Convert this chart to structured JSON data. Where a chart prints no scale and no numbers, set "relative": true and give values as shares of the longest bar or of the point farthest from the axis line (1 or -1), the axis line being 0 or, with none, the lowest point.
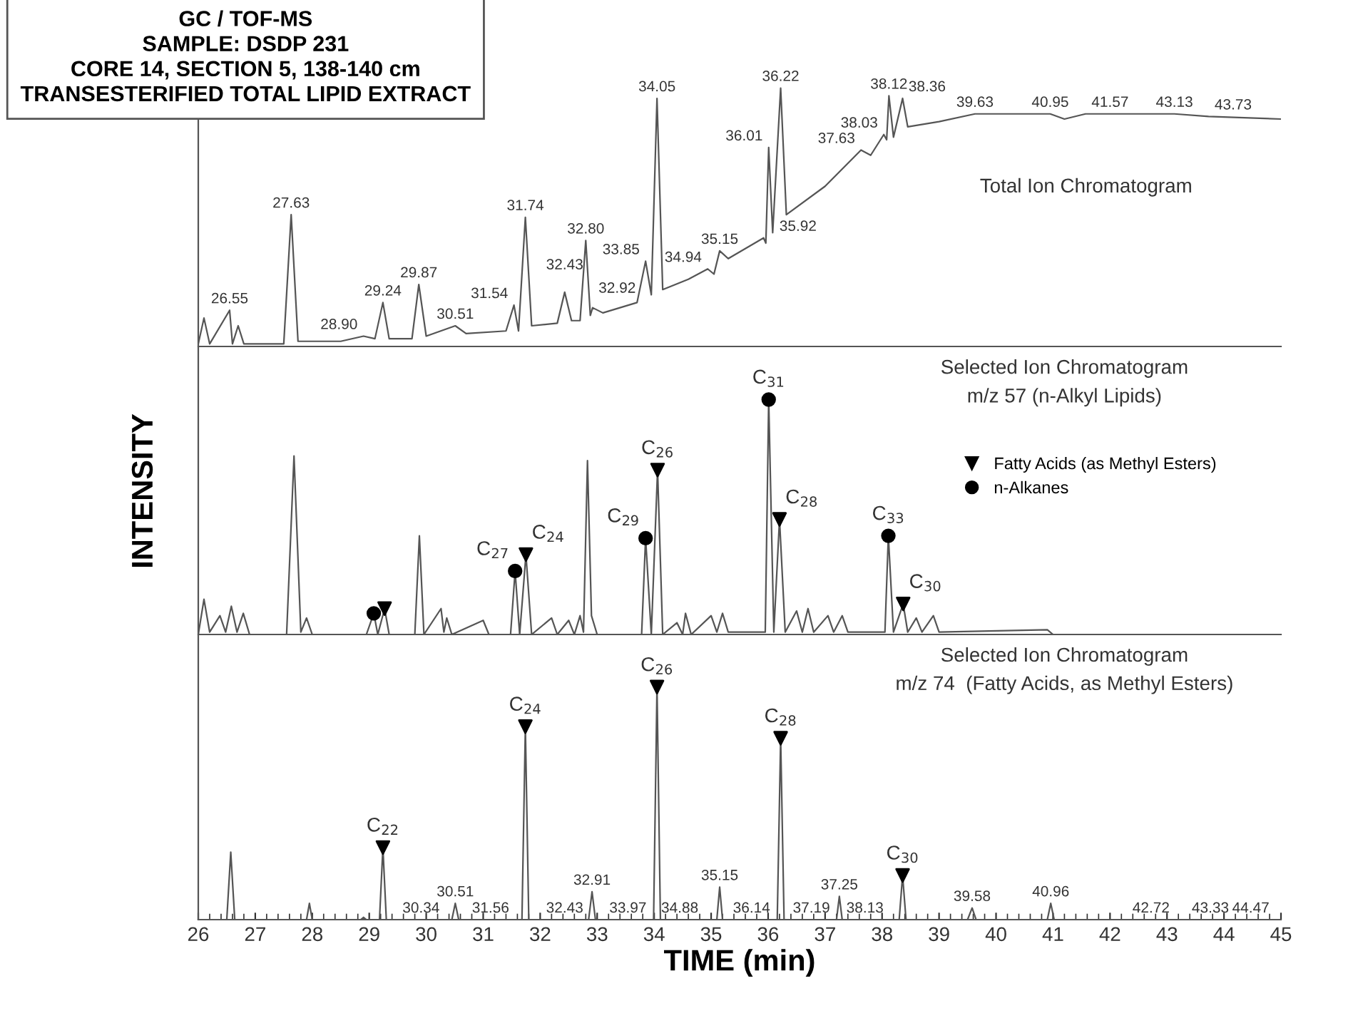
{
  "chart_data": [
    {
      "type": "line",
      "relative": true,
      "title": "GC / TOF-MS\nSAMPLE: DSDP 231\nCORE 14, SECTION 5, 138-140 cm\nTRANSESTERIFIED TOTAL LIPID EXTRACT",
      "subtitle": "Total Ion Chromatogram",
      "xlim": [
        26,
        45
      ],
      "xticks": [
        26,
        27,
        28,
        29,
        30,
        31,
        32,
        33,
        34,
        35,
        36,
        37,
        38,
        39,
        40,
        41,
        42,
        43,
        44,
        45
      ],
      "tick_labels": false,
      "series": [
        {
          "color": "#555555",
          "x": [
            26.0,
            26.1,
            26.2,
            26.55,
            26.6,
            26.7,
            26.8,
            27.5,
            27.63,
            27.75,
            28.5,
            28.9,
            29.1,
            29.24,
            29.35,
            29.75,
            29.87,
            30.0,
            30.51,
            30.7,
            31.4,
            31.54,
            31.62,
            31.74,
            31.85,
            32.3,
            32.43,
            32.55,
            32.7,
            32.8,
            32.88,
            32.92,
            33.1,
            33.7,
            33.85,
            33.95,
            34.05,
            34.15,
            34.6,
            34.94,
            35.05,
            35.15,
            35.3,
            35.92,
            35.96,
            36.01,
            36.08,
            36.22,
            36.32,
            37.0,
            37.63,
            37.8,
            38.03,
            38.08,
            38.12,
            38.2,
            38.36,
            38.45,
            39.0,
            39.63,
            40.95,
            41.2,
            41.57,
            43.13,
            43.73,
            45.0
          ],
          "values": [
            0.01,
            0.11,
            0.01,
            0.14,
            0.01,
            0.08,
            0.01,
            0.01,
            0.51,
            0.02,
            0.02,
            0.04,
            0.03,
            0.17,
            0.03,
            0.03,
            0.24,
            0.04,
            0.08,
            0.05,
            0.06,
            0.16,
            0.06,
            0.5,
            0.08,
            0.09,
            0.21,
            0.1,
            0.1,
            0.41,
            0.12,
            0.15,
            0.13,
            0.17,
            0.33,
            0.2,
            0.96,
            0.22,
            0.26,
            0.3,
            0.28,
            0.37,
            0.34,
            0.42,
            0.4,
            0.77,
            0.44,
            1.0,
            0.51,
            0.62,
            0.76,
            0.74,
            0.82,
            0.8,
            0.97,
            0.81,
            0.96,
            0.85,
            0.87,
            0.9,
            0.9,
            0.88,
            0.9,
            0.9,
            0.89,
            0.88
          ]
        }
      ],
      "annotations": [
        {
          "text": "26.55",
          "x": 26.55,
          "y": 0.14
        },
        {
          "text": "27.63",
          "x": 27.63,
          "y": 0.51
        },
        {
          "text": "28.90",
          "x": 28.9,
          "y": 0.04
        },
        {
          "text": "29.24",
          "x": 29.24,
          "y": 0.17
        },
        {
          "text": "29.87",
          "x": 29.87,
          "y": 0.24
        },
        {
          "text": "30.51",
          "x": 30.51,
          "y": 0.08
        },
        {
          "text": "31.54",
          "x": 31.54,
          "y": 0.16
        },
        {
          "text": "31.74",
          "x": 31.74,
          "y": 0.5
        },
        {
          "text": "32.43",
          "x": 32.43,
          "y": 0.21
        },
        {
          "text": "32.80",
          "x": 32.8,
          "y": 0.41
        },
        {
          "text": "32.92",
          "x": 32.92,
          "y": 0.15
        },
        {
          "text": "33.85",
          "x": 33.85,
          "y": 0.33
        },
        {
          "text": "34.05",
          "x": 34.05,
          "y": 0.96
        },
        {
          "text": "34.94",
          "x": 34.94,
          "y": 0.3
        },
        {
          "text": "35.15",
          "x": 35.15,
          "y": 0.37
        },
        {
          "text": "35.92",
          "x": 35.92,
          "y": 0.42
        },
        {
          "text": "36.01",
          "x": 36.01,
          "y": 0.77
        },
        {
          "text": "36.22",
          "x": 36.22,
          "y": 1.0
        },
        {
          "text": "37.63",
          "x": 37.63,
          "y": 0.76
        },
        {
          "text": "38.03",
          "x": 38.03,
          "y": 0.82
        },
        {
          "text": "38.12",
          "x": 38.12,
          "y": 0.97
        },
        {
          "text": "38.36",
          "x": 38.36,
          "y": 0.96
        },
        {
          "text": "39.63",
          "x": 39.63,
          "y": 0.9
        },
        {
          "text": "40.95",
          "x": 40.95,
          "y": 0.9
        },
        {
          "text": "41.57",
          "x": 41.57,
          "y": 0.9
        },
        {
          "text": "43.13",
          "x": 43.13,
          "y": 0.9
        },
        {
          "text": "43.73",
          "x": 43.73,
          "y": 0.89
        }
      ]
    },
    {
      "type": "line",
      "relative": true,
      "title": "Selected Ion Chromatogram",
      "subtitle": "m/z 57 (n-Alkyl Lipids)",
      "ylabel": "INTENSITY",
      "xlim": [
        26,
        45
      ],
      "xticks": [
        26,
        27,
        28,
        29,
        30,
        31,
        32,
        33,
        34,
        35,
        36,
        37,
        38,
        39,
        40,
        41,
        42,
        43,
        44,
        45
      ],
      "tick_labels": false,
      "legend": "right",
      "series": [
        {
          "color": "#555555",
          "x": [
            26.0,
            26.1,
            26.2,
            26.38,
            26.48,
            26.58,
            26.68,
            26.79,
            26.9,
            27.55,
            27.68,
            27.8,
            27.9,
            28.0,
            28.95,
            29.08,
            29.15,
            29.27,
            29.35,
            29.8,
            29.88,
            29.96,
            30.26,
            30.31,
            30.36,
            30.45,
            31.0,
            31.1,
            31.48,
            31.56,
            31.64,
            31.75,
            31.85,
            32.2,
            32.3,
            32.5,
            32.6,
            32.7,
            32.76,
            32.83,
            32.9,
            33.0,
            33.78,
            33.85,
            33.95,
            34.06,
            34.15,
            34.4,
            34.5,
            34.55,
            34.65,
            35.0,
            35.1,
            35.2,
            35.3,
            35.95,
            36.01,
            36.1,
            36.2,
            36.3,
            36.5,
            36.6,
            36.7,
            36.8,
            37.05,
            37.15,
            37.3,
            37.4,
            38.05,
            38.11,
            38.2,
            38.37,
            38.45,
            38.6,
            38.7,
            38.9,
            39.0,
            40.9,
            41.0,
            45.0
          ],
          "values": [
            0.0,
            0.15,
            0.01,
            0.08,
            0.01,
            0.12,
            0.01,
            0.09,
            0.0,
            0.0,
            0.76,
            0.01,
            0.07,
            0.0,
            0.0,
            0.09,
            0.0,
            0.11,
            0.0,
            0.0,
            0.42,
            0.0,
            0.11,
            0.01,
            0.07,
            0.0,
            0.06,
            0.0,
            0.0,
            0.27,
            0.0,
            0.34,
            0.0,
            0.07,
            0.0,
            0.06,
            0.0,
            0.08,
            0.01,
            0.74,
            0.08,
            0.0,
            0.0,
            0.41,
            0.0,
            0.7,
            0.0,
            0.05,
            0.0,
            0.09,
            0.0,
            0.08,
            0.01,
            0.09,
            0.01,
            0.01,
            1.0,
            0.01,
            0.49,
            0.01,
            0.1,
            0.01,
            0.11,
            0.01,
            0.08,
            0.01,
            0.08,
            0.01,
            0.01,
            0.42,
            0.01,
            0.13,
            0.01,
            0.07,
            0.01,
            0.08,
            0.01,
            0.02,
            0.0,
            0.0
          ]
        },
        {
          "type": "scatter",
          "name": "Fatty Acids (as Methyl Esters)",
          "color": "#000000",
          "marker": "triangle",
          "x": [
            29.27,
            31.75,
            34.06,
            36.2,
            38.37
          ],
          "values": [
            0.11,
            0.34,
            0.7,
            0.49,
            0.13
          ]
        },
        {
          "type": "scatter",
          "name": "n-Alkanes",
          "color": "#000000",
          "marker": "circle",
          "x": [
            29.08,
            31.56,
            33.85,
            36.01,
            38.11
          ],
          "values": [
            0.09,
            0.27,
            0.41,
            1.0,
            0.42
          ]
        }
      ],
      "annotations": [
        {
          "text": "C$_{27}$",
          "x": 31.56,
          "y": 0.27
        },
        {
          "text": "C$_{24}$",
          "x": 31.75,
          "y": 0.34
        },
        {
          "text": "C$_{29}$",
          "x": 33.85,
          "y": 0.41
        },
        {
          "text": "C$_{26}$",
          "x": 34.06,
          "y": 0.7
        },
        {
          "text": "C$_{31}$",
          "x": 36.01,
          "y": 1.0
        },
        {
          "text": "C$_{28}$",
          "x": 36.2,
          "y": 0.49
        },
        {
          "text": "C$_{33}$",
          "x": 38.11,
          "y": 0.42
        },
        {
          "text": "C$_{30}$",
          "x": 38.37,
          "y": 0.13
        }
      ]
    },
    {
      "type": "line",
      "relative": true,
      "title": "Selected Ion Chromatogram",
      "subtitle": "m/z 74  (Fatty Acids, as Methyl Esters)",
      "xlabel": "TIME (min)",
      "xlim": [
        26,
        45
      ],
      "xticks": [
        26,
        27,
        28,
        29,
        30,
        31,
        32,
        33,
        34,
        35,
        36,
        37,
        38,
        39,
        40,
        41,
        42,
        43,
        44,
        45
      ],
      "tick_labels": "x",
      "series": [
        {
          "color": "#555555",
          "x": [
            26.0,
            26.5,
            26.57,
            26.64,
            27.9,
            27.95,
            28.0,
            28.85,
            28.9,
            28.95,
            29.18,
            29.24,
            29.3,
            30.45,
            30.51,
            30.57,
            31.68,
            31.74,
            31.8,
            32.85,
            32.91,
            32.97,
            33.99,
            34.05,
            34.11,
            35.1,
            35.15,
            35.2,
            36.16,
            36.22,
            36.28,
            37.2,
            37.25,
            37.3,
            38.3,
            38.36,
            38.42,
            39.5,
            39.58,
            39.65,
            40.9,
            40.96,
            41.02,
            45.0
          ],
          "values": [
            0.0,
            0.0,
            0.29,
            0.0,
            0.0,
            0.07,
            0.0,
            0.0,
            0.01,
            0.0,
            0.0,
            0.31,
            0.0,
            0.0,
            0.07,
            0.0,
            0.0,
            0.83,
            0.0,
            0.0,
            0.12,
            0.0,
            0.0,
            1.0,
            0.0,
            0.0,
            0.14,
            0.0,
            0.0,
            0.78,
            0.0,
            0.0,
            0.1,
            0.0,
            0.0,
            0.19,
            0.0,
            0.0,
            0.05,
            0.0,
            0.0,
            0.07,
            0.0,
            0.0
          ]
        },
        {
          "type": "scatter",
          "color": "#000000",
          "marker": "triangle",
          "x": [
            29.24,
            31.74,
            34.05,
            36.22,
            38.36
          ],
          "values": [
            0.31,
            0.83,
            1.0,
            0.78,
            0.19
          ]
        }
      ],
      "annotations": [
        {
          "text": "C$_{22}$",
          "x": 29.24,
          "y": 0.31
        },
        {
          "text": "C$_{24}$",
          "x": 31.74,
          "y": 0.83
        },
        {
          "text": "C$_{26}$",
          "x": 34.05,
          "y": 1.0
        },
        {
          "text": "C$_{28}$",
          "x": 36.22,
          "y": 0.78
        },
        {
          "text": "C$_{30}$",
          "x": 38.36,
          "y": 0.19
        },
        {
          "text": "30.34",
          "x": 30.34,
          "y": 0.0
        },
        {
          "text": "30.51",
          "x": 30.51,
          "y": 0.07
        },
        {
          "text": "31.56",
          "x": 31.56,
          "y": 0.0
        },
        {
          "text": "32.43",
          "x": 32.43,
          "y": 0.0
        },
        {
          "text": "32.91",
          "x": 32.91,
          "y": 0.12
        },
        {
          "text": "33.97",
          "x": 33.97,
          "y": 0.0
        },
        {
          "text": "34.88",
          "x": 34.88,
          "y": 0.0
        },
        {
          "text": "35.15",
          "x": 35.15,
          "y": 0.14
        },
        {
          "text": "36.14",
          "x": 36.14,
          "y": 0.0
        },
        {
          "text": "37.19",
          "x": 37.19,
          "y": 0.0
        },
        {
          "text": "37.25",
          "x": 37.25,
          "y": 0.1
        },
        {
          "text": "38.13",
          "x": 38.13,
          "y": 0.0
        },
        {
          "text": "39.58",
          "x": 39.58,
          "y": 0.05
        },
        {
          "text": "40.96",
          "x": 40.96,
          "y": 0.07
        },
        {
          "text": "42.72",
          "x": 42.72,
          "y": 0.0
        },
        {
          "text": "43.33",
          "x": 43.33,
          "y": 0.0
        },
        {
          "text": "44.47",
          "x": 44.47,
          "y": 0.0
        }
      ]
    }
  ]
}
